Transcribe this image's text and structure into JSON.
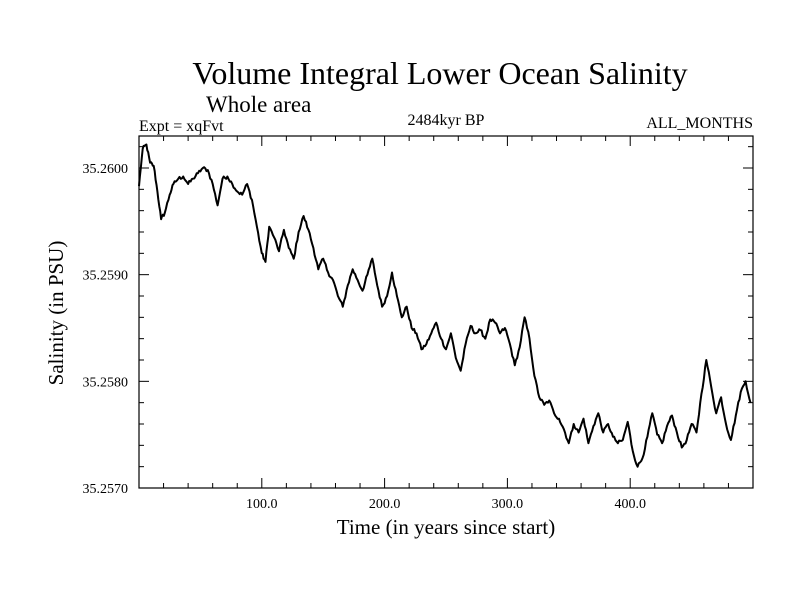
{
  "chart_data": {
    "type": "line",
    "title": "Volume Integral Lower Ocean Salinity",
    "subtitle": "Whole area",
    "experiment_label": "Expt = xqFvt",
    "period_label": "2484kyr BP",
    "months_label": "ALL_MONTHS",
    "xlabel": "Time (in years since start)",
    "ylabel": "Salinity (in PSU)",
    "xlim": [
      0,
      500
    ],
    "ylim": [
      35.257,
      35.2603
    ],
    "x_tick_values": [
      100,
      200,
      300,
      400
    ],
    "x_tick_labels": [
      "100.0",
      "200.0",
      "300.0",
      "400.0"
    ],
    "y_tick_values": [
      35.257,
      35.258,
      35.259,
      35.26
    ],
    "y_tick_labels": [
      "35.2570",
      "35.2580",
      "35.2590",
      "35.2600"
    ],
    "series": [
      {
        "name": "Salinity",
        "color": "#000000",
        "x": [
          0,
          3,
          6,
          9,
          12,
          15,
          18,
          21,
          25,
          28,
          32,
          36,
          40,
          44,
          48,
          52,
          56,
          60,
          64,
          68,
          72,
          76,
          80,
          84,
          88,
          92,
          96,
          100,
          103,
          106,
          110,
          114,
          118,
          122,
          126,
          130,
          134,
          138,
          142,
          146,
          150,
          154,
          158,
          162,
          166,
          170,
          174,
          178,
          182,
          186,
          190,
          194,
          198,
          202,
          206,
          210,
          214,
          218,
          222,
          226,
          230,
          234,
          238,
          242,
          246,
          250,
          254,
          258,
          262,
          266,
          270,
          274,
          278,
          282,
          286,
          290,
          294,
          298,
          302,
          306,
          310,
          314,
          318,
          322,
          326,
          330,
          334,
          338,
          342,
          346,
          350,
          354,
          358,
          362,
          366,
          370,
          374,
          378,
          382,
          386,
          390,
          394,
          398,
          402,
          406,
          410,
          414,
          418,
          422,
          426,
          430,
          434,
          438,
          442,
          446,
          450,
          454,
          458,
          462,
          466,
          470,
          474,
          478,
          482,
          486,
          490,
          494,
          498
        ],
        "values": [
          35.25983,
          35.26018,
          35.26022,
          35.26005,
          35.26002,
          35.25978,
          35.25952,
          35.25958,
          35.25975,
          35.25985,
          35.2599,
          35.25992,
          35.25985,
          35.2599,
          35.25995,
          35.26,
          35.25998,
          35.25985,
          35.25965,
          35.2599,
          35.25992,
          35.25985,
          35.25978,
          35.25975,
          35.25985,
          35.2597,
          35.25945,
          35.2592,
          35.25912,
          35.25945,
          35.25935,
          35.25922,
          35.25942,
          35.25925,
          35.25915,
          35.2594,
          35.25955,
          35.25942,
          35.25925,
          35.25905,
          35.25915,
          35.25902,
          35.25895,
          35.2588,
          35.2587,
          35.2589,
          35.25905,
          35.25895,
          35.25885,
          35.259,
          35.25915,
          35.2589,
          35.2587,
          35.2588,
          35.25902,
          35.2588,
          35.2586,
          35.2587,
          35.2585,
          35.25845,
          35.2583,
          35.25835,
          35.25845,
          35.25855,
          35.2584,
          35.2583,
          35.25845,
          35.25822,
          35.2581,
          35.25835,
          35.25852,
          35.25845,
          35.25848,
          35.2584,
          35.25858,
          35.25855,
          35.25845,
          35.2585,
          35.25835,
          35.25815,
          35.25832,
          35.2586,
          35.2584,
          35.25805,
          35.25785,
          35.25778,
          35.25782,
          35.2577,
          35.25765,
          35.25755,
          35.25742,
          35.2576,
          35.25752,
          35.25765,
          35.25742,
          35.25758,
          35.2577,
          35.25752,
          35.2576,
          35.25748,
          35.25742,
          35.25745,
          35.25762,
          35.25735,
          35.2572,
          35.25728,
          35.25748,
          35.2577,
          35.2575,
          35.25742,
          35.25758,
          35.25768,
          35.25752,
          35.25738,
          35.25745,
          35.2576,
          35.25752,
          35.25788,
          35.2582,
          35.25795,
          35.2577,
          35.25785,
          35.2576,
          35.25745,
          35.25768,
          35.2579,
          35.258,
          35.2578
        ]
      }
    ]
  }
}
